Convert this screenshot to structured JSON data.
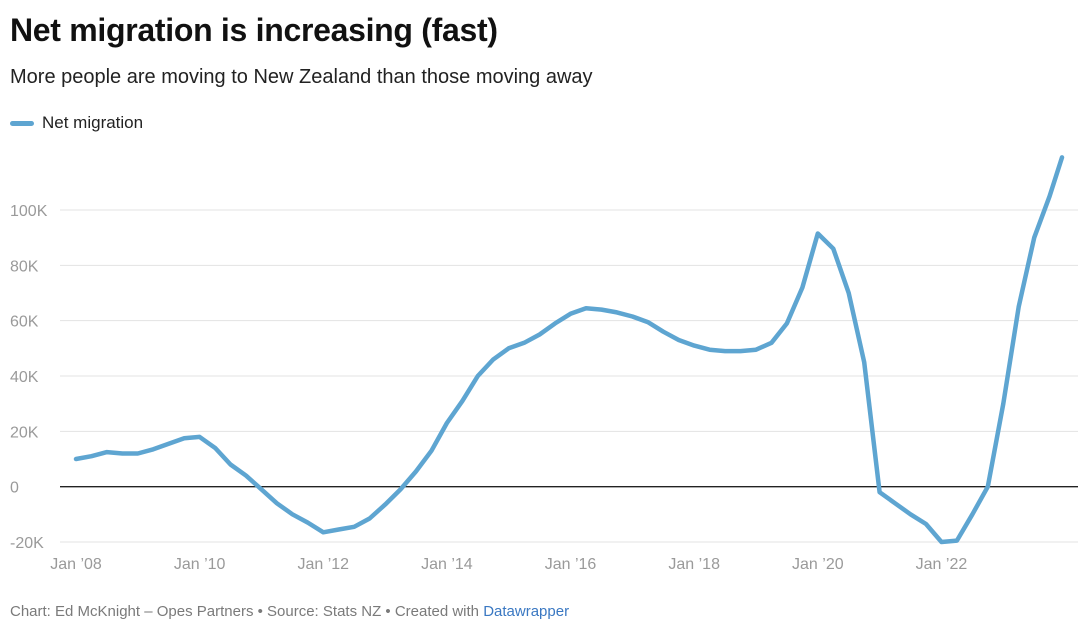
{
  "header": {
    "title": "Net migration is increasing (fast)",
    "subtitle": "More people are moving to New Zealand than those moving away"
  },
  "footer": {
    "credit": "Chart: Ed McKnight – Opes Partners • Source: Stats NZ • Created with ",
    "tool": "Datawrapper"
  },
  "chart_data": {
    "type": "line",
    "title": "Net migration is increasing (fast)",
    "subtitle": "More people are moving to New Zealand than those moving away",
    "xlabel": "",
    "ylabel": "",
    "xlim": [
      2008.0,
      2023.95
    ],
    "ylim": [
      -20000,
      120000
    ],
    "grid": true,
    "legend": "top-left",
    "line_color": "#5ea5d1",
    "x_ticks": [
      {
        "x": 2008,
        "label": "Jan ’08"
      },
      {
        "x": 2010,
        "label": "Jan ’10"
      },
      {
        "x": 2012,
        "label": "Jan ’12"
      },
      {
        "x": 2014,
        "label": "Jan ’14"
      },
      {
        "x": 2016,
        "label": "Jan ’16"
      },
      {
        "x": 2018,
        "label": "Jan ’18"
      },
      {
        "x": 2020,
        "label": "Jan ’20"
      },
      {
        "x": 2022,
        "label": "Jan ’22"
      }
    ],
    "y_ticks": [
      {
        "y": -20000,
        "label": "-20K"
      },
      {
        "y": 0,
        "label": "0"
      },
      {
        "y": 20000,
        "label": "20K"
      },
      {
        "y": 40000,
        "label": "40K"
      },
      {
        "y": 60000,
        "label": "60K"
      },
      {
        "y": 80000,
        "label": "80K"
      },
      {
        "y": 100000,
        "label": "100K"
      }
    ],
    "series": [
      {
        "name": "Net migration",
        "points": [
          [
            2008.0,
            10000
          ],
          [
            2008.25,
            11000
          ],
          [
            2008.5,
            12500
          ],
          [
            2008.75,
            12000
          ],
          [
            2009.0,
            12000
          ],
          [
            2009.25,
            13500
          ],
          [
            2009.5,
            15500
          ],
          [
            2009.75,
            17500
          ],
          [
            2010.0,
            18000
          ],
          [
            2010.25,
            14000
          ],
          [
            2010.5,
            8000
          ],
          [
            2010.75,
            4000
          ],
          [
            2011.0,
            -1000
          ],
          [
            2011.25,
            -6000
          ],
          [
            2011.5,
            -10000
          ],
          [
            2011.75,
            -13000
          ],
          [
            2012.0,
            -16500
          ],
          [
            2012.25,
            -15500
          ],
          [
            2012.5,
            -14500
          ],
          [
            2012.75,
            -11500
          ],
          [
            2013.0,
            -6500
          ],
          [
            2013.25,
            -1000
          ],
          [
            2013.5,
            5500
          ],
          [
            2013.75,
            13000
          ],
          [
            2014.0,
            23000
          ],
          [
            2014.25,
            31000
          ],
          [
            2014.5,
            40000
          ],
          [
            2014.75,
            46000
          ],
          [
            2015.0,
            50000
          ],
          [
            2015.25,
            52000
          ],
          [
            2015.5,
            55000
          ],
          [
            2015.75,
            59000
          ],
          [
            2016.0,
            62500
          ],
          [
            2016.25,
            64500
          ],
          [
            2016.5,
            64000
          ],
          [
            2016.75,
            63000
          ],
          [
            2017.0,
            61500
          ],
          [
            2017.25,
            59500
          ],
          [
            2017.5,
            56000
          ],
          [
            2017.75,
            53000
          ],
          [
            2018.0,
            51000
          ],
          [
            2018.25,
            49500
          ],
          [
            2018.5,
            49000
          ],
          [
            2018.75,
            49000
          ],
          [
            2019.0,
            49500
          ],
          [
            2019.25,
            52000
          ],
          [
            2019.5,
            59000
          ],
          [
            2019.75,
            72000
          ],
          [
            2020.0,
            91500
          ],
          [
            2020.25,
            86000
          ],
          [
            2020.5,
            70000
          ],
          [
            2020.75,
            45000
          ],
          [
            2021.0,
            -2000
          ],
          [
            2021.25,
            -6000
          ],
          [
            2021.5,
            -10000
          ],
          [
            2021.75,
            -13500
          ],
          [
            2022.0,
            -20000
          ],
          [
            2022.25,
            -19500
          ],
          [
            2022.5,
            -10000
          ],
          [
            2022.75,
            0
          ],
          [
            2023.0,
            30000
          ],
          [
            2023.25,
            65000
          ],
          [
            2023.5,
            90000
          ],
          [
            2023.75,
            105000
          ],
          [
            2023.95,
            119000
          ]
        ]
      }
    ]
  }
}
